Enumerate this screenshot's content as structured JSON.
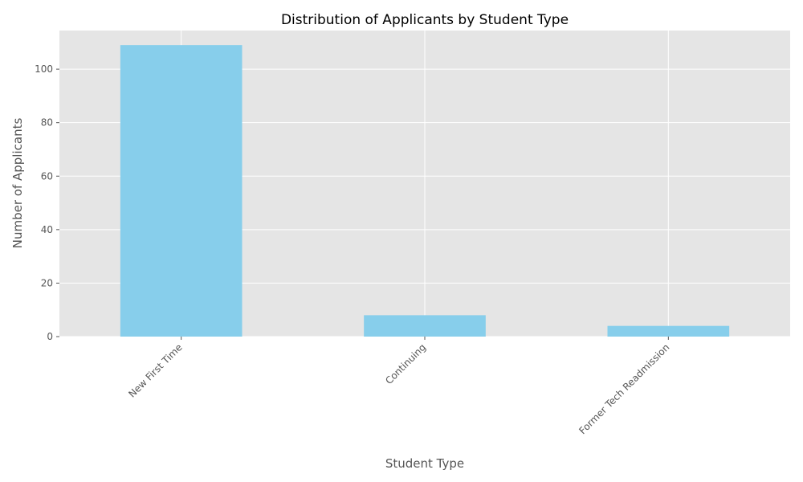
{
  "chart_data": {
    "type": "bar",
    "title": "Distribution of Applicants by Student Type",
    "xlabel": "Student Type",
    "ylabel": "Number of Applicants",
    "categories": [
      "New First Time",
      "Continuing",
      "Former Tech Readmission"
    ],
    "values": [
      109,
      8,
      4
    ],
    "ylim": [
      0,
      114.45
    ],
    "yticks": [
      0,
      20,
      40,
      60,
      80,
      100
    ],
    "grid": true,
    "legend": "none",
    "colors": {
      "bar": "#87ceeb",
      "plot_background": "#e5e5e5",
      "grid": "#ffffff",
      "text": "#555555"
    }
  }
}
